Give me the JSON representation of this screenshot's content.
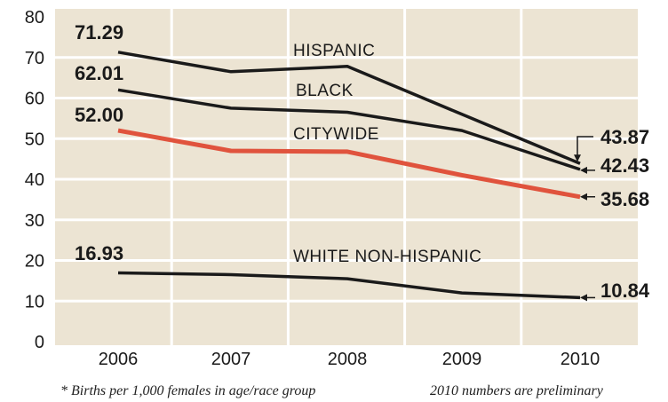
{
  "chart_data": {
    "type": "line",
    "x": [
      "2006",
      "2007",
      "2008",
      "2009",
      "2010"
    ],
    "ylim": [
      0,
      80
    ],
    "yticks": [
      "0",
      "10",
      "20",
      "30",
      "40",
      "50",
      "60",
      "70",
      "80"
    ],
    "grid": true,
    "series": [
      {
        "name": "HISPANIC",
        "values": [
          71.29,
          66.5,
          67.8,
          56.0,
          43.87
        ],
        "color": "#1a1a1a",
        "start_label": "71.29",
        "end_label": "43.87"
      },
      {
        "name": "BLACK",
        "values": [
          62.01,
          57.5,
          56.5,
          52.0,
          42.43
        ],
        "color": "#1a1a1a",
        "start_label": "62.01",
        "end_label": "42.43"
      },
      {
        "name": "CITYWIDE",
        "values": [
          52.0,
          47.0,
          46.8,
          41.0,
          35.68
        ],
        "color": "#e0533d",
        "start_label": "52.00",
        "end_label": "35.68"
      },
      {
        "name": "WHITE NON-HISPANIC",
        "values": [
          16.93,
          16.5,
          15.5,
          12.0,
          10.84
        ],
        "color": "#1a1a1a",
        "start_label": "16.93",
        "end_label": "10.84"
      }
    ],
    "footnote_left": "* Births per 1,000 females in age/race group",
    "footnote_right": "2010 numbers are preliminary"
  },
  "colors": {
    "plot_bg": "#ece4d3",
    "grid": "#ffffff",
    "accent": "#e0533d",
    "ink": "#1a1a1a"
  }
}
